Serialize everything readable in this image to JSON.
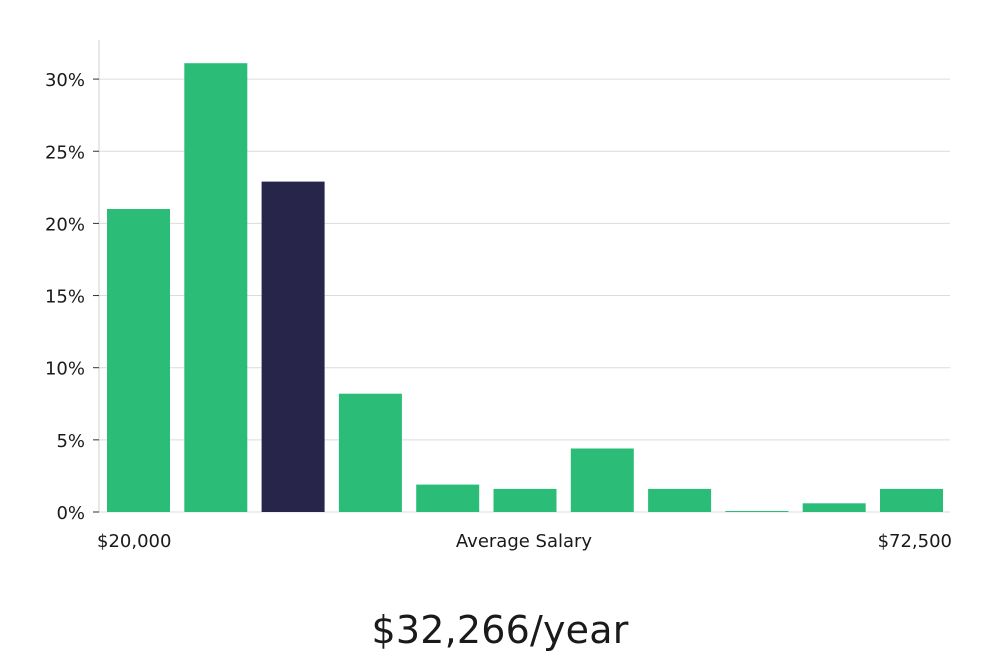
{
  "chart_data": {
    "type": "bar",
    "title": "",
    "xlabel": "Average Salary",
    "ylabel": "",
    "x_range_labels": [
      "$20,000",
      "$72,500"
    ],
    "values": [
      21,
      31.1,
      22.9,
      8.2,
      1.9,
      1.6,
      4.4,
      1.6,
      0.05,
      0.6,
      1.6
    ],
    "highlight_index": 2,
    "ylim": [
      0,
      32
    ],
    "yticks": [
      0,
      5,
      10,
      15,
      20,
      25,
      30
    ],
    "ytick_labels": [
      "0%",
      "5%",
      "10%",
      "15%",
      "20%",
      "25%",
      "30%"
    ],
    "grid": true,
    "colors": {
      "bar": "#2bbd77",
      "highlight": "#27254a",
      "grid": "#dcdcdc",
      "axis": "#d0d0d0"
    }
  },
  "summary": {
    "average_salary": "$32,266/year"
  }
}
